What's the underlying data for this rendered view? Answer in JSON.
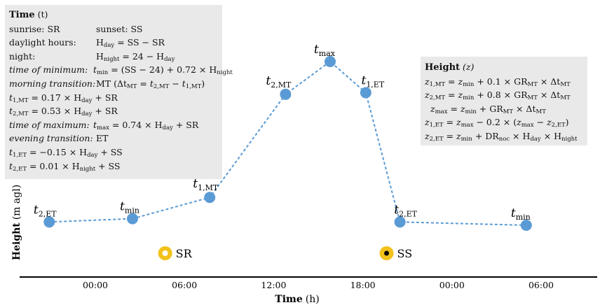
{
  "chart_data": {
    "type": "line",
    "xlabel": {
      "main": "Time",
      "unit": "(h)"
    },
    "ylabel": {
      "main": "Height",
      "unit": "(m agl)"
    },
    "x_ticks": [
      {
        "label": "00:00",
        "hour": 0
      },
      {
        "label": "06:00",
        "hour": 6
      },
      {
        "label": "12:00",
        "hour": 12
      },
      {
        "label": "18:00",
        "hour": 18
      },
      {
        "label": "00:00",
        "hour": 24
      },
      {
        "label": "06:00",
        "hour": 30
      }
    ],
    "points": [
      {
        "label": "t",
        "sub": "2,ET",
        "hour": -3.1,
        "height": 0.02
      },
      {
        "label": "t",
        "sub": "min",
        "hour": 2.5,
        "height": 0.04
      },
      {
        "label": "t",
        "sub": "1,MT",
        "hour": 7.7,
        "height": 0.17
      },
      {
        "label": "t",
        "sub": "2,MT",
        "hour": 12.8,
        "height": 0.8
      },
      {
        "label": "t",
        "sub": "max",
        "hour": 15.8,
        "height": 1.0
      },
      {
        "label": "t",
        "sub": "1,ET",
        "hour": 18.2,
        "height": 0.81
      },
      {
        "label": "t",
        "sub": "2,ET",
        "hour": 20.5,
        "height": 0.02
      },
      {
        "label": "t",
        "sub": "min",
        "hour": 29.0,
        "height": 0.0
      }
    ],
    "markers": [
      {
        "label": "SR",
        "hour": 4.7,
        "kind": "sunrise"
      },
      {
        "label": "SS",
        "hour": 19.6,
        "kind": "sunset"
      }
    ],
    "colors": {
      "point": "#5b9bd5",
      "line": "#5b9bd5",
      "sun": "#f2c21b",
      "axis": "#000000"
    }
  },
  "time_box": {
    "title": "Time",
    "title_sym": "(t)",
    "lines": [
      {
        "left": "sunrise: SR",
        "right": "sunset: SS"
      },
      {
        "left": "daylight hours:",
        "right": "H_day = SS − SR"
      },
      {
        "left": "night:",
        "right": "H_night = 24 − H_day"
      },
      {
        "left": "time of minimum:",
        "right": "t_min = (SS − 24) + 0.72 × H_night"
      },
      {
        "left": "morning transition:",
        "right": "MT (Δt_MT = t_2,MT − t_1,MT)"
      },
      {
        "full": "t_1,MT = 0.17 × H_day + SR"
      },
      {
        "full": "t_2,MT = 0.53 × H_day + SR"
      },
      {
        "left": "time of maximum:",
        "right": "t_max = 0.74 × H_day + SR"
      },
      {
        "left": "evening transition:",
        "right": "ET"
      },
      {
        "full": "t_1,ET = −0.15 × H_day + SS"
      },
      {
        "full": "t_2,ET = 0.01 × H_night + SS"
      }
    ]
  },
  "height_box": {
    "title": "Height",
    "title_sym": "(z)",
    "lines": [
      "z_1,MT = z_min + 0.1 × GR_MT × Δt_MT",
      "z_2,MT = z_min + 0.8 × GR_MT × Δt_MT",
      "z_max = z_min + GR_MT × Δt_MT",
      "z_1,ET = z_max − 0.2 × (z_max − z_2,ET)",
      "z_2,ET = z_min + DR_noc × H_day × H_night"
    ]
  }
}
